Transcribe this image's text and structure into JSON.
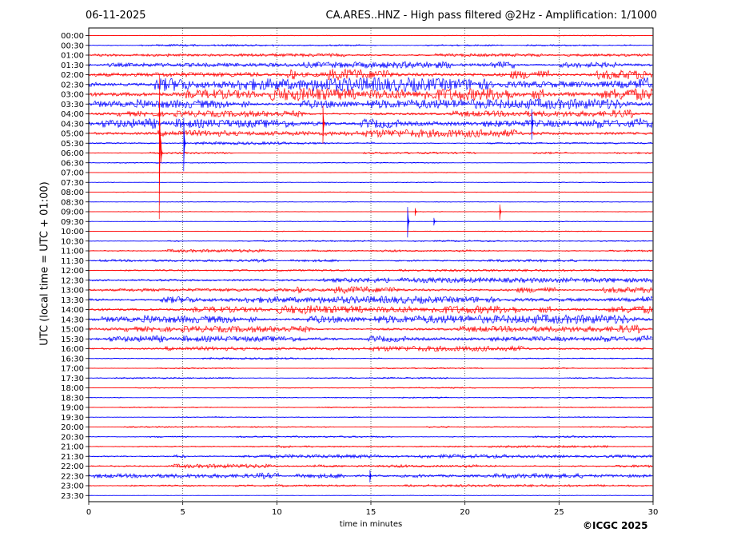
{
  "header": {
    "date": "06-11-2025",
    "title": "CA.ARES..HNZ - High pass filtered @2Hz - Amplification: 1/1000"
  },
  "footer": {
    "copyright": "©ICGC 2025"
  },
  "chart_data": {
    "type": "line",
    "title": "CA.ARES..HNZ - High pass filtered @2Hz - Amplification: 1/1000",
    "xlabel": "time in minutes",
    "ylabel": "UTC (local time = UTC + 01:00)",
    "xlim": [
      0,
      30
    ],
    "xticks": [
      0,
      5,
      10,
      15,
      20,
      25,
      30
    ],
    "grid": "vertical dotted at x ticks",
    "colors": [
      "#ff0000",
      "#0000ff"
    ],
    "rows": [
      {
        "label": "00:00",
        "color": "#ff0000",
        "amp": 0.4
      },
      {
        "label": "00:30",
        "color": "#0000ff",
        "amp": 0.8
      },
      {
        "label": "01:00",
        "color": "#ff0000",
        "amp": 1.5
      },
      {
        "label": "01:30",
        "color": "#0000ff",
        "amp": 2.5
      },
      {
        "label": "02:00",
        "color": "#ff0000",
        "amp": 4.5
      },
      {
        "label": "02:30",
        "color": "#0000ff",
        "amp": 5.5
      },
      {
        "label": "03:00",
        "color": "#ff0000",
        "amp": 5.0
      },
      {
        "label": "03:30",
        "color": "#0000ff",
        "amp": 4.0
      },
      {
        "label": "04:00",
        "color": "#ff0000",
        "amp": 3.0
      },
      {
        "label": "04:30",
        "color": "#0000ff",
        "amp": 4.5
      },
      {
        "label": "05:00",
        "color": "#ff0000",
        "amp": 3.0
      },
      {
        "label": "05:30",
        "color": "#0000ff",
        "amp": 1.5
      },
      {
        "label": "06:00",
        "color": "#ff0000",
        "amp": 0.8
      },
      {
        "label": "06:30",
        "color": "#0000ff",
        "amp": 0.4
      },
      {
        "label": "07:00",
        "color": "#ff0000",
        "amp": 0.3
      },
      {
        "label": "07:30",
        "color": "#0000ff",
        "amp": 0.3
      },
      {
        "label": "08:00",
        "color": "#ff0000",
        "amp": 0.3
      },
      {
        "label": "08:30",
        "color": "#0000ff",
        "amp": 0.3
      },
      {
        "label": "09:00",
        "color": "#ff0000",
        "amp": 0.3
      },
      {
        "label": "09:30",
        "color": "#0000ff",
        "amp": 0.3
      },
      {
        "label": "10:00",
        "color": "#ff0000",
        "amp": 0.4
      },
      {
        "label": "10:30",
        "color": "#0000ff",
        "amp": 0.6
      },
      {
        "label": "11:00",
        "color": "#ff0000",
        "amp": 1.2
      },
      {
        "label": "11:30",
        "color": "#0000ff",
        "amp": 1.2
      },
      {
        "label": "12:00",
        "color": "#ff0000",
        "amp": 1.0
      },
      {
        "label": "12:30",
        "color": "#0000ff",
        "amp": 2.2
      },
      {
        "label": "13:00",
        "color": "#ff0000",
        "amp": 2.8
      },
      {
        "label": "13:30",
        "color": "#0000ff",
        "amp": 2.8
      },
      {
        "label": "14:00",
        "color": "#ff0000",
        "amp": 3.2
      },
      {
        "label": "14:30",
        "color": "#0000ff",
        "amp": 3.5
      },
      {
        "label": "15:00",
        "color": "#ff0000",
        "amp": 3.0
      },
      {
        "label": "15:30",
        "color": "#0000ff",
        "amp": 3.0
      },
      {
        "label": "16:00",
        "color": "#ff0000",
        "amp": 2.0
      },
      {
        "label": "16:30",
        "color": "#0000ff",
        "amp": 1.0
      },
      {
        "label": "17:00",
        "color": "#ff0000",
        "amp": 0.6
      },
      {
        "label": "17:30",
        "color": "#0000ff",
        "amp": 0.6
      },
      {
        "label": "18:00",
        "color": "#ff0000",
        "amp": 0.5
      },
      {
        "label": "18:30",
        "color": "#0000ff",
        "amp": 0.5
      },
      {
        "label": "19:00",
        "color": "#ff0000",
        "amp": 0.5
      },
      {
        "label": "19:30",
        "color": "#0000ff",
        "amp": 0.5
      },
      {
        "label": "20:00",
        "color": "#ff0000",
        "amp": 0.6
      },
      {
        "label": "20:30",
        "color": "#0000ff",
        "amp": 0.8
      },
      {
        "label": "21:00",
        "color": "#ff0000",
        "amp": 0.9
      },
      {
        "label": "21:30",
        "color": "#0000ff",
        "amp": 1.5
      },
      {
        "label": "22:00",
        "color": "#ff0000",
        "amp": 1.6
      },
      {
        "label": "22:30",
        "color": "#0000ff",
        "amp": 2.2
      },
      {
        "label": "23:00",
        "color": "#ff0000",
        "amp": 1.0
      },
      {
        "label": "23:30",
        "color": "#0000ff",
        "amp": 0.2
      }
    ],
    "events": [
      {
        "row": "05:30",
        "minute": 3.8,
        "color": "#ff0000",
        "amp": 95
      },
      {
        "row": "06:00",
        "minute": 3.9,
        "color": "#ff0000",
        "amp": 12
      },
      {
        "row": "05:30",
        "minute": 5.1,
        "color": "#0000ff",
        "amp": 35
      },
      {
        "row": "04:30",
        "minute": 12.5,
        "color": "#ff0000",
        "amp": 25
      },
      {
        "row": "04:30",
        "minute": 23.6,
        "color": "#0000ff",
        "amp": 20
      },
      {
        "row": "09:30",
        "minute": 17.0,
        "color": "#0000ff",
        "amp": 20
      },
      {
        "row": "09:00",
        "minute": 21.9,
        "color": "#ff0000",
        "amp": 10
      },
      {
        "row": "09:00",
        "minute": 17.4,
        "color": "#ff0000",
        "amp": 5
      },
      {
        "row": "09:30",
        "minute": 18.4,
        "color": "#0000ff",
        "amp": 5
      },
      {
        "row": "22:30",
        "minute": 15.0,
        "color": "#0000ff",
        "amp": 8
      }
    ]
  }
}
